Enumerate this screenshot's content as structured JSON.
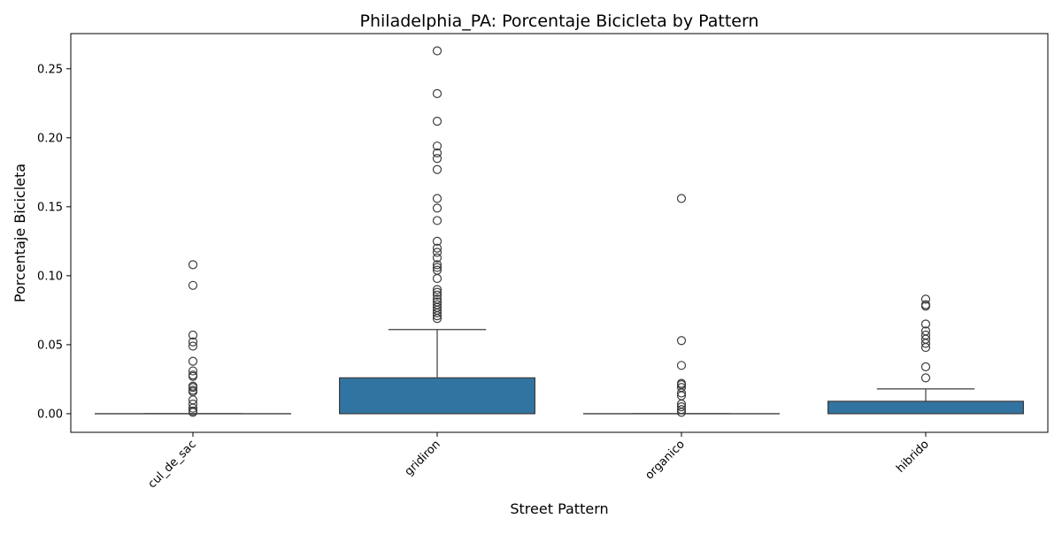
{
  "chart_data": {
    "type": "box",
    "title": "Philadelphia_PA: Porcentaje Bicicleta by Pattern",
    "xlabel": "Street Pattern",
    "ylabel": "Porcentaje Bicicleta",
    "ylim": [
      -0.0135,
      0.2755
    ],
    "yticks": [
      "0.00",
      "0.05",
      "0.10",
      "0.15",
      "0.20",
      "0.25"
    ],
    "categories": [
      "cul_de_sac",
      "gridiron",
      "organico",
      "hibrido"
    ],
    "box_color": "#3274a1",
    "line_color": "#3d3d3d",
    "boxes": [
      {
        "category": "cul_de_sac",
        "min": 0.0,
        "q1": 0.0,
        "median": 0.0,
        "q3": 0.0,
        "max": 0.0,
        "outliers": [
          0.108,
          0.093,
          0.057,
          0.052,
          0.049,
          0.038,
          0.031,
          0.028,
          0.027,
          0.02,
          0.019,
          0.017,
          0.016,
          0.01,
          0.007,
          0.004,
          0.002,
          0.001
        ]
      },
      {
        "category": "gridiron",
        "min": 0.0,
        "q1": 0.0,
        "median": 0.0,
        "q3": 0.026,
        "max": 0.061,
        "outliers": [
          0.263,
          0.232,
          0.212,
          0.194,
          0.189,
          0.185,
          0.177,
          0.156,
          0.149,
          0.14,
          0.125,
          0.12,
          0.117,
          0.113,
          0.108,
          0.106,
          0.104,
          0.098,
          0.09,
          0.088,
          0.086,
          0.083,
          0.081,
          0.079,
          0.077,
          0.075,
          0.073,
          0.071,
          0.069
        ]
      },
      {
        "category": "organico",
        "min": 0.0,
        "q1": 0.0,
        "median": 0.0,
        "q3": 0.0,
        "max": 0.0,
        "outliers": [
          0.156,
          0.053,
          0.035,
          0.022,
          0.021,
          0.019,
          0.015,
          0.013,
          0.007,
          0.005,
          0.003,
          0.001
        ]
      },
      {
        "category": "hibrido",
        "min": 0.0,
        "q1": 0.0,
        "median": 0.0,
        "q3": 0.009,
        "max": 0.018,
        "outliers": [
          0.083,
          0.079,
          0.078,
          0.065,
          0.06,
          0.057,
          0.054,
          0.051,
          0.048,
          0.034,
          0.026
        ]
      }
    ]
  }
}
